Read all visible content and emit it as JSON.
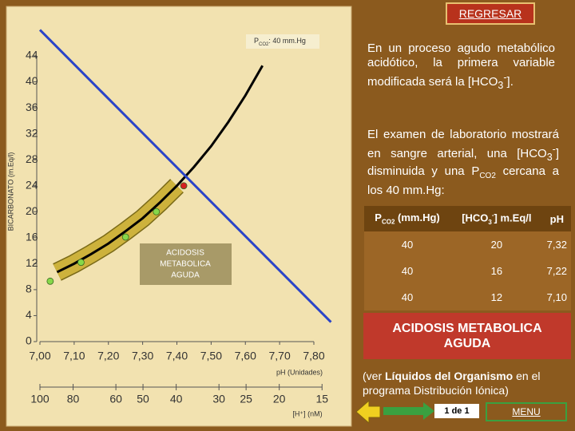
{
  "chart_data": {
    "type": "line",
    "y_label": "BICARBONATO (m.Eq/l)",
    "x_label": "pH (Unidades)",
    "x2_label": "[H⁺] (nM)",
    "xlim": [
      7.0,
      7.8
    ],
    "xticks": [
      {
        "value": 7.0,
        "label": "7,00"
      },
      {
        "value": 7.1,
        "label": "7,10"
      },
      {
        "value": 7.2,
        "label": "7,20"
      },
      {
        "value": 7.3,
        "label": "7,30"
      },
      {
        "value": 7.4,
        "label": "7,40"
      },
      {
        "value": 7.5,
        "label": "7,50"
      },
      {
        "value": 7.6,
        "label": "7,60"
      },
      {
        "value": 7.7,
        "label": "7,70"
      },
      {
        "value": 7.8,
        "label": "7,80"
      }
    ],
    "ylim": [
      0,
      44
    ],
    "yticks": [
      0,
      4,
      8,
      12,
      16,
      20,
      24,
      28,
      32,
      36,
      40,
      44
    ],
    "x2ticks": [
      100,
      80,
      60,
      50,
      40,
      30,
      25,
      20,
      15
    ],
    "series": [
      {
        "style": "line",
        "color": "#000000",
        "x": [
          7.05,
          7.1,
          7.15,
          7.2,
          7.25,
          7.3,
          7.35,
          7.4,
          7.45,
          7.5,
          7.55,
          7.6,
          7.65
        ],
        "values": [
          10.7,
          12.0,
          13.5,
          15.1,
          17.0,
          19.0,
          21.4,
          24.0,
          26.9,
          30.1,
          33.8,
          37.9,
          42.5
        ]
      },
      {
        "style": "line",
        "color": "#2a44c8",
        "x": [
          7.0,
          7.85
        ],
        "values": [
          48,
          3
        ]
      },
      {
        "style": "points",
        "color": "#86d84a",
        "x": [
          7.03,
          7.12,
          7.25,
          7.34
        ],
        "values": [
          9.3,
          12.2,
          16.1,
          20.0
        ]
      },
      {
        "style": "points",
        "color": "#d42020",
        "x": [
          7.42
        ],
        "values": [
          24.0
        ]
      }
    ],
    "pco2_label": {
      "p": "P",
      "sub": "CO2",
      "rest": ": 40 mm.Hg"
    },
    "region_label": [
      "ACIDOSIS",
      "METABOLICA",
      "AGUDA"
    ]
  },
  "button": "REGRESAR",
  "paragraph1": [
    "En un proceso agudo metabólico acidótico, la primera variable modificada será la [HCO",
    "3",
    "-",
    "]."
  ],
  "paragraph2": [
    "El examen de laboratorio mostrará en sangre arterial, una [HCO",
    "3",
    "-",
    "] disminuida y una P",
    "CO2",
    " cercana a los 40 mm.Hg:"
  ],
  "table": {
    "header": [
      [
        "P",
        "CO2",
        " (mm.Hg)"
      ],
      [
        "[HCO",
        "3",
        "-",
        "] m.Eq/l"
      ],
      [
        "pH"
      ]
    ],
    "rows": [
      [
        "40",
        "20",
        "7,32"
      ],
      [
        "40",
        "16",
        "7,22"
      ],
      [
        "40",
        "12",
        "7,10"
      ]
    ]
  },
  "banner": [
    "ACIDOSIS METABOLICA",
    "AGUDA"
  ],
  "note": [
    "(ver ",
    "Líquidos del Organismo",
    " en el programa Distribución Iónica)"
  ],
  "nav": {
    "page": "1 de 1",
    "menu": "MENU"
  }
}
